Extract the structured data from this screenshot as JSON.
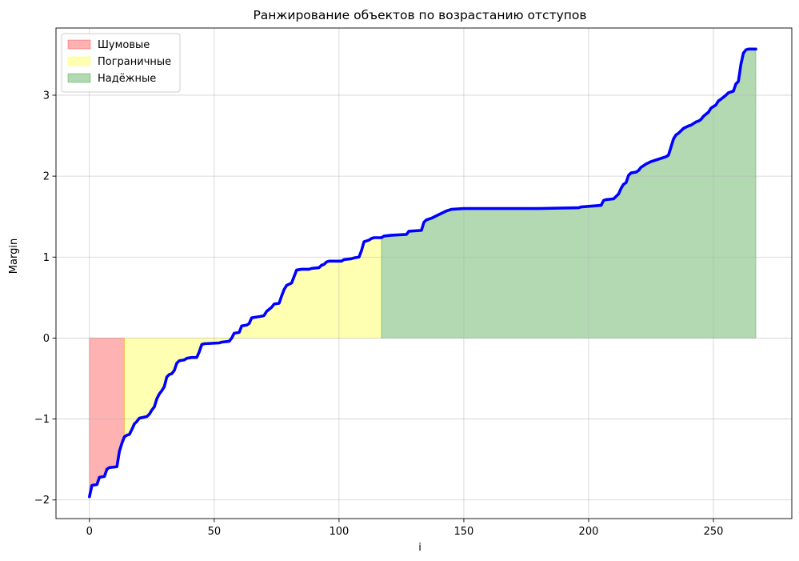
{
  "chart_data": {
    "type": "area",
    "title": "Ранжирование объектов по возрастанию отступов",
    "xlabel": "i",
    "ylabel": "Margin",
    "xlim": [
      -13.4,
      281.4
    ],
    "ylim": [
      -2.23,
      3.83
    ],
    "xticks": [
      0,
      50,
      100,
      150,
      200,
      250
    ],
    "yticks": [
      -2,
      -1,
      0,
      1,
      2,
      3
    ],
    "grid": true,
    "legend_position": "top-left",
    "line_color": "#0000ff",
    "regions": [
      {
        "name": "Шумовые",
        "x_start": 0,
        "x_end": 14,
        "color": "#ff0000"
      },
      {
        "name": "Пограничные",
        "x_start": 14,
        "x_end": 117,
        "color": "#ffff00"
      },
      {
        "name": "Надёжные",
        "x_start": 117,
        "x_end": 267,
        "color": "#008000"
      }
    ],
    "series": [
      {
        "points": [
          [
            0,
            -1.96
          ],
          [
            1,
            -1.82
          ],
          [
            3,
            -1.81
          ],
          [
            4,
            -1.72
          ],
          [
            6,
            -1.71
          ],
          [
            7,
            -1.62
          ],
          [
            8,
            -1.6
          ],
          [
            11,
            -1.59
          ],
          [
            12,
            -1.4
          ],
          [
            13,
            -1.3
          ],
          [
            14,
            -1.22
          ],
          [
            15,
            -1.2
          ],
          [
            16,
            -1.19
          ],
          [
            17,
            -1.13
          ],
          [
            18,
            -1.06
          ],
          [
            19,
            -1.03
          ],
          [
            20,
            -0.99
          ],
          [
            23,
            -0.97
          ],
          [
            24,
            -0.94
          ],
          [
            25,
            -0.89
          ],
          [
            26,
            -0.85
          ],
          [
            27,
            -0.75
          ],
          [
            28,
            -0.69
          ],
          [
            29,
            -0.65
          ],
          [
            30,
            -0.6
          ],
          [
            31,
            -0.48
          ],
          [
            32,
            -0.45
          ],
          [
            33,
            -0.44
          ],
          [
            34,
            -0.4
          ],
          [
            35,
            -0.31
          ],
          [
            36,
            -0.28
          ],
          [
            38,
            -0.27
          ],
          [
            39,
            -0.25
          ],
          [
            41,
            -0.24
          ],
          [
            43,
            -0.24
          ],
          [
            44,
            -0.17
          ],
          [
            45,
            -0.08
          ],
          [
            46,
            -0.07
          ],
          [
            52,
            -0.06
          ],
          [
            53,
            -0.05
          ],
          [
            56,
            -0.04
          ],
          [
            57,
            0.0
          ],
          [
            58,
            0.06
          ],
          [
            60,
            0.07
          ],
          [
            61,
            0.15
          ],
          [
            63,
            0.16
          ],
          [
            64,
            0.18
          ],
          [
            65,
            0.25
          ],
          [
            67,
            0.26
          ],
          [
            69,
            0.27
          ],
          [
            70,
            0.28
          ],
          [
            71,
            0.33
          ],
          [
            73,
            0.38
          ],
          [
            74,
            0.42
          ],
          [
            76,
            0.43
          ],
          [
            77,
            0.52
          ],
          [
            78,
            0.6
          ],
          [
            79,
            0.65
          ],
          [
            81,
            0.68
          ],
          [
            82,
            0.76
          ],
          [
            83,
            0.84
          ],
          [
            85,
            0.85
          ],
          [
            88,
            0.85
          ],
          [
            89,
            0.86
          ],
          [
            92,
            0.87
          ],
          [
            93,
            0.9
          ],
          [
            94,
            0.91
          ],
          [
            95,
            0.94
          ],
          [
            96,
            0.95
          ],
          [
            101,
            0.95
          ],
          [
            102,
            0.97
          ],
          [
            105,
            0.98
          ],
          [
            106,
            0.99
          ],
          [
            108,
            1.0
          ],
          [
            109,
            1.08
          ],
          [
            110,
            1.19
          ],
          [
            112,
            1.21
          ],
          [
            113,
            1.23
          ],
          [
            114,
            1.24
          ],
          [
            117,
            1.24
          ],
          [
            118,
            1.26
          ],
          [
            121,
            1.27
          ],
          [
            127,
            1.28
          ],
          [
            128,
            1.32
          ],
          [
            133,
            1.33
          ],
          [
            134,
            1.43
          ],
          [
            135,
            1.46
          ],
          [
            137,
            1.48
          ],
          [
            139,
            1.51
          ],
          [
            141,
            1.54
          ],
          [
            143,
            1.57
          ],
          [
            145,
            1.59
          ],
          [
            150,
            1.6
          ],
          [
            160,
            1.6
          ],
          [
            180,
            1.6
          ],
          [
            196,
            1.61
          ],
          [
            197,
            1.62
          ],
          [
            201,
            1.63
          ],
          [
            205,
            1.64
          ],
          [
            206,
            1.7
          ],
          [
            207,
            1.71
          ],
          [
            210,
            1.72
          ],
          [
            212,
            1.78
          ],
          [
            213,
            1.85
          ],
          [
            214,
            1.9
          ],
          [
            215,
            1.92
          ],
          [
            216,
            2.01
          ],
          [
            217,
            2.04
          ],
          [
            219,
            2.05
          ],
          [
            220,
            2.07
          ],
          [
            221,
            2.11
          ],
          [
            222,
            2.13
          ],
          [
            223,
            2.15
          ],
          [
            225,
            2.18
          ],
          [
            227,
            2.2
          ],
          [
            229,
            2.22
          ],
          [
            231,
            2.24
          ],
          [
            232,
            2.26
          ],
          [
            233,
            2.36
          ],
          [
            234,
            2.46
          ],
          [
            235,
            2.51
          ],
          [
            236,
            2.53
          ],
          [
            237,
            2.56
          ],
          [
            238,
            2.59
          ],
          [
            240,
            2.62
          ],
          [
            241,
            2.63
          ],
          [
            242,
            2.65
          ],
          [
            243,
            2.67
          ],
          [
            244,
            2.68
          ],
          [
            245,
            2.7
          ],
          [
            246,
            2.74
          ],
          [
            248,
            2.79
          ],
          [
            249,
            2.84
          ],
          [
            250,
            2.86
          ],
          [
            251,
            2.88
          ],
          [
            252,
            2.93
          ],
          [
            253,
            2.95
          ],
          [
            255,
            3.0
          ],
          [
            256,
            3.03
          ],
          [
            258,
            3.05
          ],
          [
            259,
            3.14
          ],
          [
            260,
            3.17
          ],
          [
            261,
            3.38
          ],
          [
            262,
            3.52
          ],
          [
            263,
            3.56
          ],
          [
            264,
            3.57
          ],
          [
            267,
            3.57
          ]
        ]
      }
    ]
  }
}
